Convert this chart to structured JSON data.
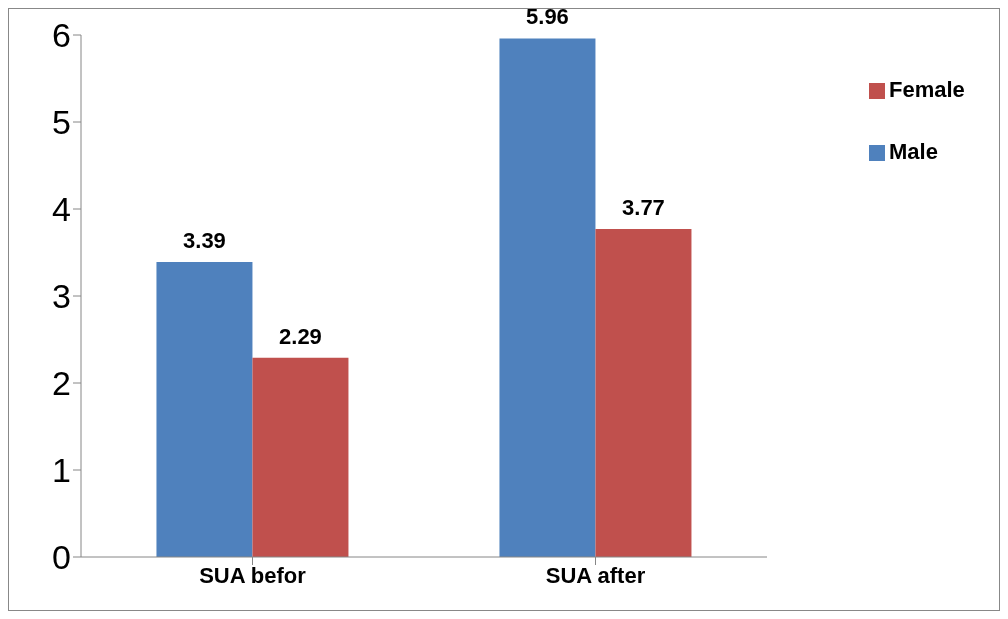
{
  "chart_data": {
    "type": "bar",
    "categories": [
      "SUA befor",
      "SUA after"
    ],
    "series": [
      {
        "name": "Male",
        "color": "#4f81bd",
        "values": [
          3.39,
          5.96
        ]
      },
      {
        "name": "Female",
        "color": "#c0504d",
        "values": [
          2.29,
          3.77
        ]
      }
    ],
    "ylim": [
      0,
      6
    ],
    "yticks": [
      0,
      1,
      2,
      3,
      4,
      5,
      6
    ],
    "data_labels": true,
    "legend": "top right",
    "grid": false
  }
}
